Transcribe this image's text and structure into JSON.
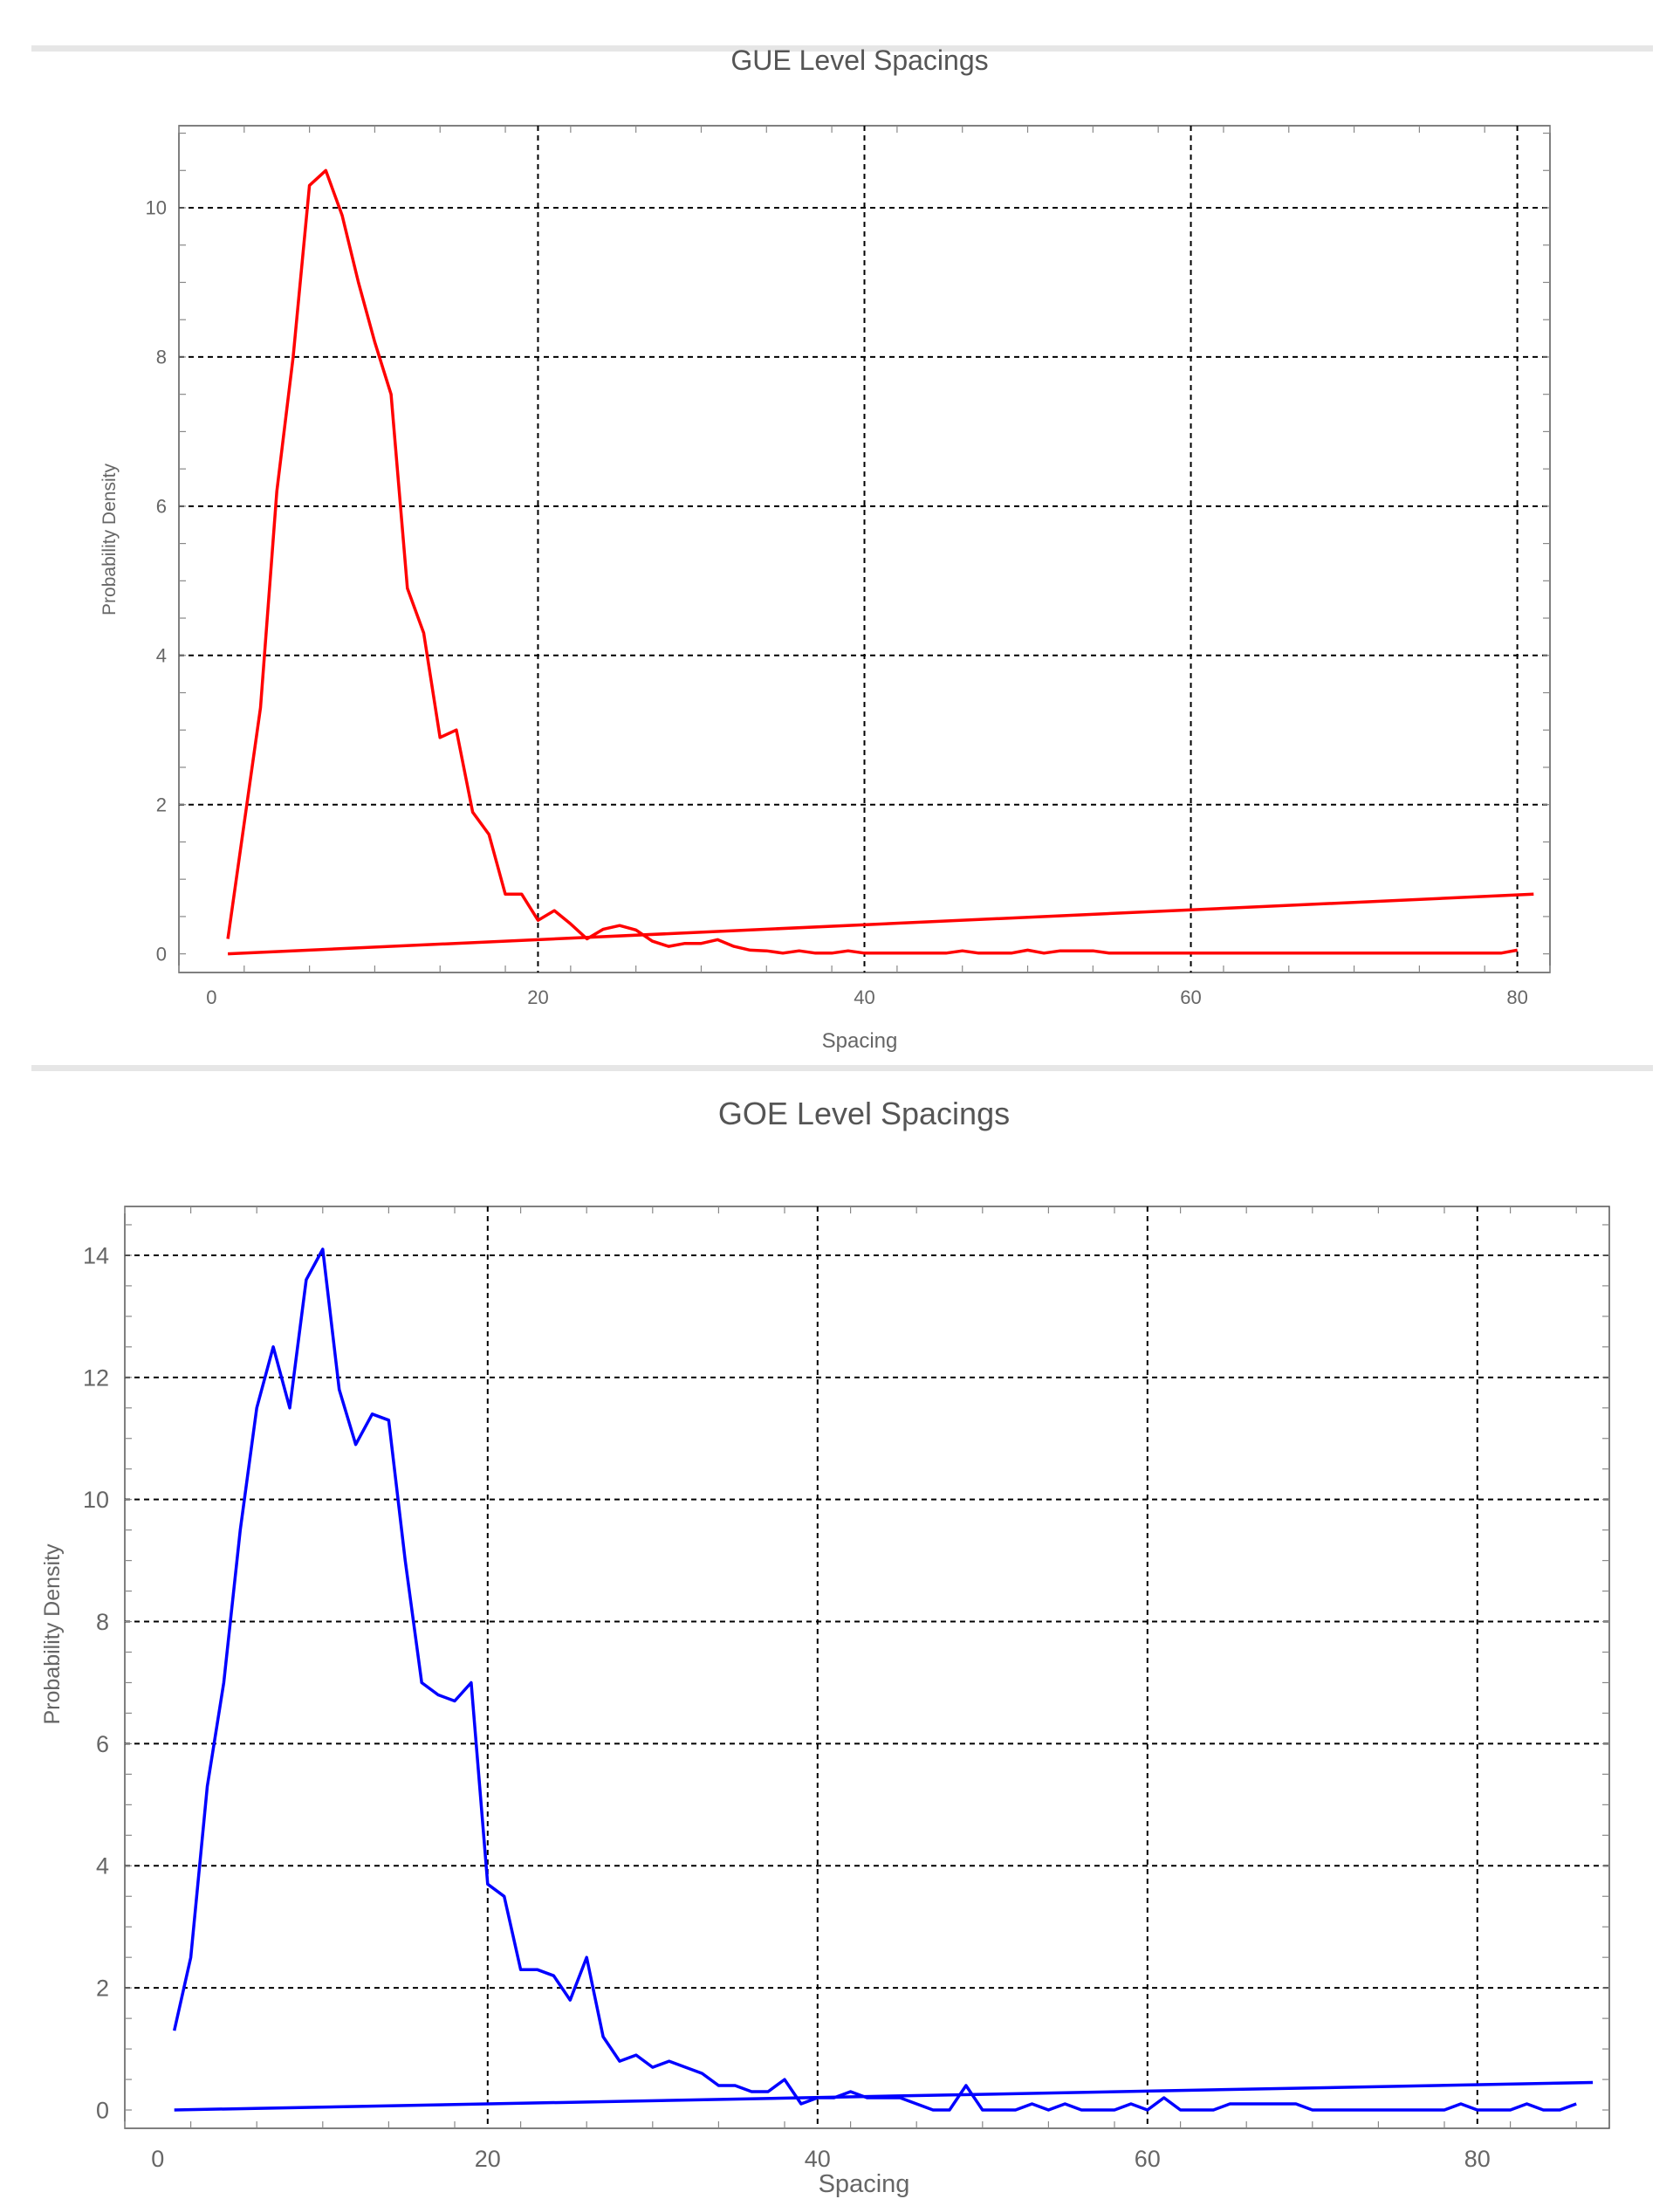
{
  "chart_data": [
    {
      "type": "line",
      "title": "GUE Level Spacings",
      "xlabel": "Spacing",
      "ylabel": "Probability  Density",
      "xlim": [
        -2,
        82
      ],
      "ylim": [
        -0.25,
        11.1
      ],
      "xticks": [
        0,
        20,
        40,
        60,
        80
      ],
      "yticks": [
        0,
        2,
        4,
        6,
        8,
        10
      ],
      "grid": true,
      "color": "#ff0000",
      "series": [
        {
          "values": [
            [
              1,
              0.2
            ],
            [
              3,
              3.3
            ],
            [
              4,
              6.2
            ],
            [
              5,
              8.0
            ],
            [
              6,
              10.3
            ],
            [
              7,
              10.5
            ],
            [
              8,
              9.9
            ],
            [
              9,
              9.0
            ],
            [
              10,
              8.2
            ],
            [
              11,
              7.5
            ],
            [
              12,
              4.9
            ],
            [
              13,
              4.3
            ],
            [
              14,
              2.9
            ],
            [
              15,
              3.0
            ],
            [
              16,
              1.9
            ],
            [
              17,
              1.6
            ],
            [
              18,
              0.8
            ],
            [
              19,
              0.8
            ],
            [
              20,
              0.45
            ],
            [
              21,
              0.58
            ],
            [
              22,
              0.4
            ],
            [
              23,
              0.2
            ],
            [
              24,
              0.33
            ],
            [
              25,
              0.38
            ],
            [
              26,
              0.32
            ],
            [
              27,
              0.17
            ],
            [
              28,
              0.1
            ],
            [
              29,
              0.14
            ],
            [
              30,
              0.14
            ],
            [
              31,
              0.19
            ],
            [
              32,
              0.1
            ],
            [
              33,
              0.05
            ],
            [
              34,
              0.04
            ],
            [
              35,
              0.01
            ],
            [
              36,
              0.04
            ],
            [
              37,
              0.01
            ],
            [
              38,
              0.01
            ],
            [
              39,
              0.04
            ],
            [
              40,
              0.01
            ],
            [
              45,
              0.01
            ],
            [
              46,
              0.04
            ],
            [
              47,
              0.01
            ],
            [
              49,
              0.01
            ],
            [
              50,
              0.05
            ],
            [
              51,
              0.01
            ],
            [
              52,
              0.04
            ],
            [
              54,
              0.04
            ],
            [
              55,
              0.01
            ],
            [
              79,
              0.01
            ],
            [
              80,
              0.05
            ]
          ]
        },
        {
          "values": [
            [
              1,
              0.0
            ],
            [
              81,
              0.8
            ]
          ]
        }
      ]
    },
    {
      "type": "line",
      "title": "GOE Level Spacings",
      "xlabel": "Spacing",
      "ylabel": "Probability  Density",
      "xlim": [
        -2,
        88
      ],
      "ylim": [
        -0.3,
        14.8
      ],
      "xticks": [
        0,
        20,
        40,
        60,
        80
      ],
      "yticks": [
        0,
        2,
        4,
        6,
        8,
        10,
        12,
        14
      ],
      "grid": true,
      "color": "#0000ff",
      "series": [
        {
          "values": [
            [
              1,
              1.3
            ],
            [
              2,
              2.5
            ],
            [
              3,
              5.3
            ],
            [
              4,
              7.0
            ],
            [
              5,
              9.5
            ],
            [
              6,
              11.5
            ],
            [
              7,
              12.5
            ],
            [
              8,
              11.5
            ],
            [
              9,
              13.6
            ],
            [
              10,
              14.1
            ],
            [
              11,
              11.8
            ],
            [
              12,
              10.9
            ],
            [
              13,
              11.4
            ],
            [
              14,
              11.3
            ],
            [
              15,
              9.0
            ],
            [
              16,
              7.0
            ],
            [
              17,
              6.8
            ],
            [
              18,
              6.7
            ],
            [
              19,
              7.0
            ],
            [
              20,
              3.7
            ],
            [
              21,
              3.5
            ],
            [
              22,
              2.3
            ],
            [
              23,
              2.3
            ],
            [
              24,
              2.2
            ],
            [
              25,
              1.8
            ],
            [
              26,
              2.5
            ],
            [
              27,
              1.2
            ],
            [
              28,
              0.8
            ],
            [
              29,
              0.9
            ],
            [
              30,
              0.7
            ],
            [
              31,
              0.8
            ],
            [
              32,
              0.7
            ],
            [
              33,
              0.6
            ],
            [
              34,
              0.4
            ],
            [
              35,
              0.4
            ],
            [
              36,
              0.3
            ],
            [
              37,
              0.3
            ],
            [
              38,
              0.5
            ],
            [
              39,
              0.1
            ],
            [
              40,
              0.2
            ],
            [
              41,
              0.2
            ],
            [
              42,
              0.3
            ],
            [
              43,
              0.2
            ],
            [
              44,
              0.2
            ],
            [
              45,
              0.2
            ],
            [
              46,
              0.1
            ],
            [
              47,
              0.0
            ],
            [
              48,
              0.0
            ],
            [
              49,
              0.4
            ],
            [
              50,
              0.0
            ],
            [
              51,
              0.0
            ],
            [
              52,
              0.0
            ],
            [
              53,
              0.1
            ],
            [
              54,
              0.0
            ],
            [
              55,
              0.1
            ],
            [
              56,
              0.0
            ],
            [
              58,
              0.0
            ],
            [
              59,
              0.1
            ],
            [
              60,
              0.0
            ],
            [
              61,
              0.2
            ],
            [
              62,
              0.0
            ],
            [
              64,
              0.0
            ],
            [
              65,
              0.1
            ],
            [
              69,
              0.1
            ],
            [
              70,
              0.0
            ],
            [
              78,
              0.0
            ],
            [
              79,
              0.1
            ],
            [
              80,
              0.0
            ],
            [
              82,
              0.0
            ],
            [
              83,
              0.1
            ],
            [
              84,
              0.0
            ],
            [
              85,
              0.0
            ],
            [
              86,
              0.1
            ]
          ]
        },
        {
          "values": [
            [
              1,
              0.0
            ],
            [
              87,
              0.45
            ]
          ]
        }
      ]
    }
  ]
}
